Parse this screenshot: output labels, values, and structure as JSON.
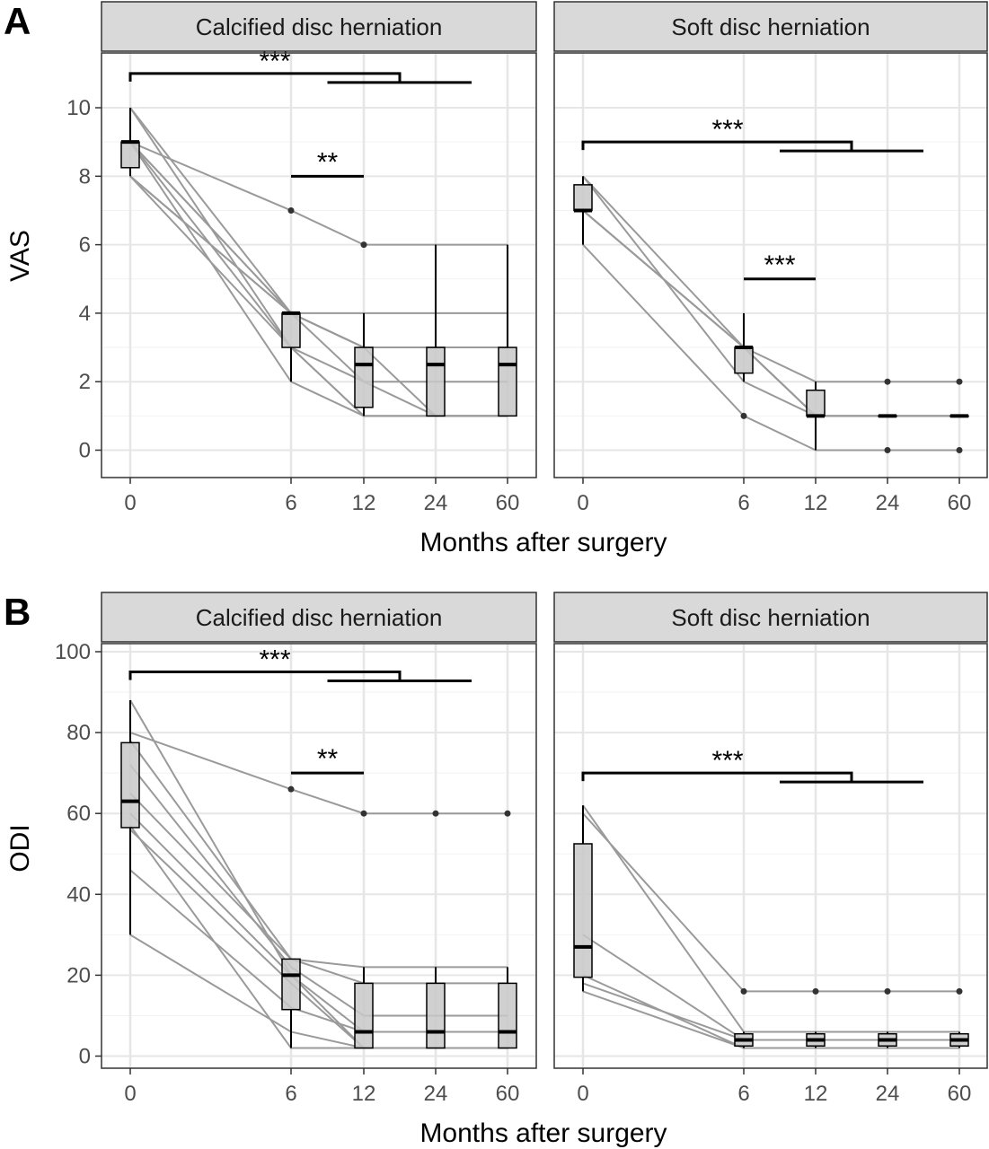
{
  "chart_data": [
    {
      "panel_label": "A",
      "type": "line",
      "ylabel": "VAS",
      "xlabel": "Months after surgery",
      "x_ticks": [
        "0",
        "6",
        "12",
        "24",
        "60"
      ],
      "ylim": [
        -0.8,
        11.6
      ],
      "y_ticks": [
        0,
        2,
        4,
        6,
        8,
        10
      ],
      "grid": true,
      "facets": [
        {
          "title": "Calcified disc herniation",
          "boxplots": [
            {
              "x": "0",
              "q1": 8.25,
              "median": 9,
              "q3": 9,
              "whisker_low": 8,
              "whisker_high": 10
            },
            {
              "x": "6",
              "q1": 3,
              "median": 4,
              "q3": 4,
              "whisker_low": 2,
              "whisker_high": 4
            },
            {
              "x": "12",
              "q1": 1.25,
              "median": 2.5,
              "q3": 3,
              "whisker_low": 1,
              "whisker_high": 4
            },
            {
              "x": "24",
              "q1": 1,
              "median": 2.5,
              "q3": 3,
              "whisker_low": 1,
              "whisker_high": 6
            },
            {
              "x": "60",
              "q1": 1,
              "median": 2.5,
              "q3": 3,
              "whisker_low": 1,
              "whisker_high": 6
            }
          ],
          "outliers": [
            {
              "x": "6",
              "y": 7
            },
            {
              "x": "12",
              "y": 6
            }
          ],
          "patients": [
            [
              10,
              4,
              4,
              4,
              4
            ],
            [
              9,
              7,
              6,
              6,
              6
            ],
            [
              9,
              4,
              3,
              3,
              3
            ],
            [
              8,
              4,
              3,
              3,
              3
            ],
            [
              10,
              3,
              2,
              2,
              2
            ],
            [
              9,
              4,
              3,
              1,
              1
            ],
            [
              8,
              4,
              2,
              1,
              1
            ],
            [
              8,
              3,
              1,
              1,
              1
            ],
            [
              9,
              2,
              1,
              1,
              1
            ],
            [
              9,
              3,
              1,
              1,
              1
            ]
          ],
          "significance": [
            {
              "label": "***",
              "from": "0",
              "to": "later",
              "y": 11
            },
            {
              "label": "**",
              "from": "6",
              "to": "12",
              "y": 8
            }
          ]
        },
        {
          "title": "Soft disc herniation",
          "boxplots": [
            {
              "x": "0",
              "q1": 7,
              "median": 7,
              "q3": 7.75,
              "whisker_low": 6,
              "whisker_high": 8
            },
            {
              "x": "6",
              "q1": 2.25,
              "median": 3,
              "q3": 3,
              "whisker_low": 2,
              "whisker_high": 4
            },
            {
              "x": "12",
              "q1": 1,
              "median": 1,
              "q3": 1.75,
              "whisker_low": 0,
              "whisker_high": 2
            },
            {
              "x": "24",
              "q1": 1,
              "median": 1,
              "q3": 1,
              "whisker_low": 1,
              "whisker_high": 1
            },
            {
              "x": "60",
              "q1": 1,
              "median": 1,
              "q3": 1,
              "whisker_low": 1,
              "whisker_high": 1
            }
          ],
          "outliers": [
            {
              "x": "6",
              "y": 1
            },
            {
              "x": "24",
              "y": 2
            },
            {
              "x": "24",
              "y": 0
            },
            {
              "x": "60",
              "y": 2
            },
            {
              "x": "60",
              "y": 0
            }
          ],
          "patients": [
            [
              8,
              3,
              2,
              2,
              2
            ],
            [
              7,
              3,
              1,
              1,
              1
            ],
            [
              7,
              3,
              1,
              1,
              1
            ],
            [
              8,
              2,
              1,
              1,
              1
            ],
            [
              7,
              3,
              1,
              1,
              1
            ],
            [
              6,
              1,
              0,
              0,
              0
            ]
          ],
          "significance": [
            {
              "label": "***",
              "from": "0",
              "to": "later",
              "y": 9
            },
            {
              "label": "***",
              "from": "6",
              "to": "12",
              "y": 5
            }
          ]
        }
      ]
    },
    {
      "panel_label": "B",
      "type": "line",
      "ylabel": "ODI",
      "xlabel": "Months after surgery",
      "x_ticks": [
        "0",
        "6",
        "12",
        "24",
        "60"
      ],
      "ylim": [
        -3,
        102
      ],
      "y_ticks": [
        0,
        20,
        40,
        60,
        80,
        100
      ],
      "grid": true,
      "facets": [
        {
          "title": "Calcified disc herniation",
          "boxplots": [
            {
              "x": "0",
              "q1": 56.5,
              "median": 63,
              "q3": 77.5,
              "whisker_low": 30,
              "whisker_high": 88
            },
            {
              "x": "6",
              "q1": 11.5,
              "median": 20,
              "q3": 24,
              "whisker_low": 2,
              "whisker_high": 24
            },
            {
              "x": "12",
              "q1": 2,
              "median": 6,
              "q3": 18,
              "whisker_low": 2,
              "whisker_high": 22
            },
            {
              "x": "24",
              "q1": 2,
              "median": 6,
              "q3": 18,
              "whisker_low": 2,
              "whisker_high": 22
            },
            {
              "x": "60",
              "q1": 2,
              "median": 6,
              "q3": 18,
              "whisker_low": 2,
              "whisker_high": 22
            }
          ],
          "outliers": [
            {
              "x": "6",
              "y": 66
            },
            {
              "x": "12",
              "y": 60
            },
            {
              "x": "24",
              "y": 60
            },
            {
              "x": "60",
              "y": 60
            }
          ],
          "patients": [
            [
              88,
              20,
              2,
              2,
              2
            ],
            [
              80,
              66,
              60,
              60,
              60
            ],
            [
              78,
              24,
              18,
              18,
              18
            ],
            [
              72,
              22,
              10,
              10,
              10
            ],
            [
              65,
              24,
              22,
              22,
              22
            ],
            [
              60,
              20,
              6,
              6,
              6
            ],
            [
              56,
              18,
              2,
              2,
              2
            ],
            [
              46,
              12,
              6,
              6,
              6
            ],
            [
              30,
              6,
              2,
              2,
              2
            ],
            [
              57,
              2,
              2,
              2,
              2
            ]
          ],
          "significance": [
            {
              "label": "***",
              "from": "0",
              "to": "later",
              "y": 95
            },
            {
              "label": "**",
              "from": "6",
              "to": "12",
              "y": 70
            }
          ]
        },
        {
          "title": "Soft disc herniation",
          "boxplots": [
            {
              "x": "0",
              "q1": 19.5,
              "median": 27,
              "q3": 52.5,
              "whisker_low": 16,
              "whisker_high": 62
            },
            {
              "x": "6",
              "q1": 2.5,
              "median": 4,
              "q3": 5.5,
              "whisker_low": 2,
              "whisker_high": 6
            },
            {
              "x": "12",
              "q1": 2.5,
              "median": 4,
              "q3": 5.5,
              "whisker_low": 2,
              "whisker_high": 6
            },
            {
              "x": "24",
              "q1": 2.5,
              "median": 4,
              "q3": 5.5,
              "whisker_low": 2,
              "whisker_high": 6
            },
            {
              "x": "60",
              "q1": 2.5,
              "median": 4,
              "q3": 5.5,
              "whisker_low": 2,
              "whisker_high": 6
            }
          ],
          "outliers": [
            {
              "x": "6",
              "y": 16
            },
            {
              "x": "12",
              "y": 16
            },
            {
              "x": "24",
              "y": 16
            },
            {
              "x": "60",
              "y": 16
            }
          ],
          "patients": [
            [
              62,
              6,
              6,
              6,
              6
            ],
            [
              60,
              16,
              16,
              16,
              16
            ],
            [
              30,
              4,
              4,
              4,
              4
            ],
            [
              20,
              2,
              2,
              2,
              2
            ],
            [
              18,
              4,
              4,
              4,
              4
            ],
            [
              16,
              2,
              2,
              2,
              2
            ]
          ],
          "significance": [
            {
              "label": "***",
              "from": "0",
              "to": "later",
              "y": 70
            }
          ]
        }
      ]
    }
  ]
}
